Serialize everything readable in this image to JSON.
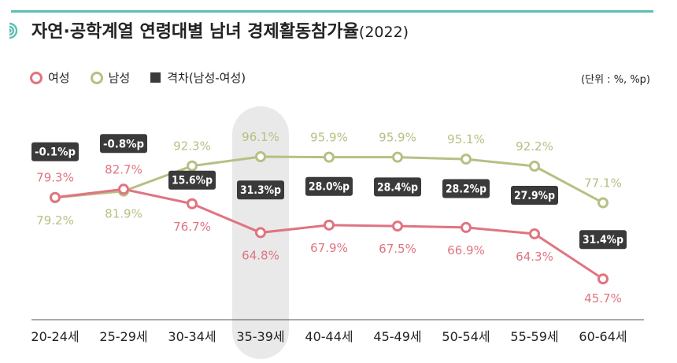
{
  "title": "자연·공학계열 연령대별 남녀 경제활동참가율",
  "title_suffix": "(2022)",
  "unit_note": "(단위 : %, %p)",
  "colors": {
    "female": "#e07480",
    "male": "#b8bf83",
    "gap_bg": "#3a3a3a",
    "highlight": "#e9e9e9",
    "accent": "#5bbfb2"
  },
  "legend": {
    "female": "여성",
    "male": "남성",
    "gap": "격차(남성-여성)"
  },
  "chart_data": {
    "type": "line",
    "categories": [
      "20-24세",
      "25-29세",
      "30-34세",
      "35-39세",
      "40-44세",
      "45-49세",
      "50-54세",
      "55-59세",
      "60-64세"
    ],
    "highlight_category": "35-39세",
    "series": [
      {
        "name": "여성",
        "values": [
          79.3,
          82.7,
          76.7,
          64.8,
          67.9,
          67.5,
          66.9,
          64.3,
          45.7
        ],
        "labels": [
          "79.3%",
          "82.7%",
          "76.7%",
          "64.8%",
          "67.9%",
          "67.5%",
          "66.9%",
          "64.3%",
          "45.7%"
        ]
      },
      {
        "name": "남성",
        "values": [
          79.2,
          81.9,
          92.3,
          96.1,
          95.9,
          95.9,
          95.1,
          92.2,
          77.1
        ],
        "labels": [
          "79.2%",
          "81.9%",
          "92.3%",
          "96.1%",
          "95.9%",
          "95.9%",
          "95.1%",
          "92.2%",
          "77.1%"
        ]
      }
    ],
    "gap": {
      "name": "격차(남성-여성)",
      "values": [
        -0.1,
        -0.8,
        15.6,
        31.3,
        28.0,
        28.4,
        28.2,
        27.9,
        31.4
      ],
      "labels": [
        "-0.1%p",
        "-0.8%p",
        "15.6%p",
        "31.3%p",
        "28.0%p",
        "28.4%p",
        "28.2%p",
        "27.9%p",
        "31.4%p"
      ]
    },
    "legend_position": "top-left",
    "grid": false
  }
}
